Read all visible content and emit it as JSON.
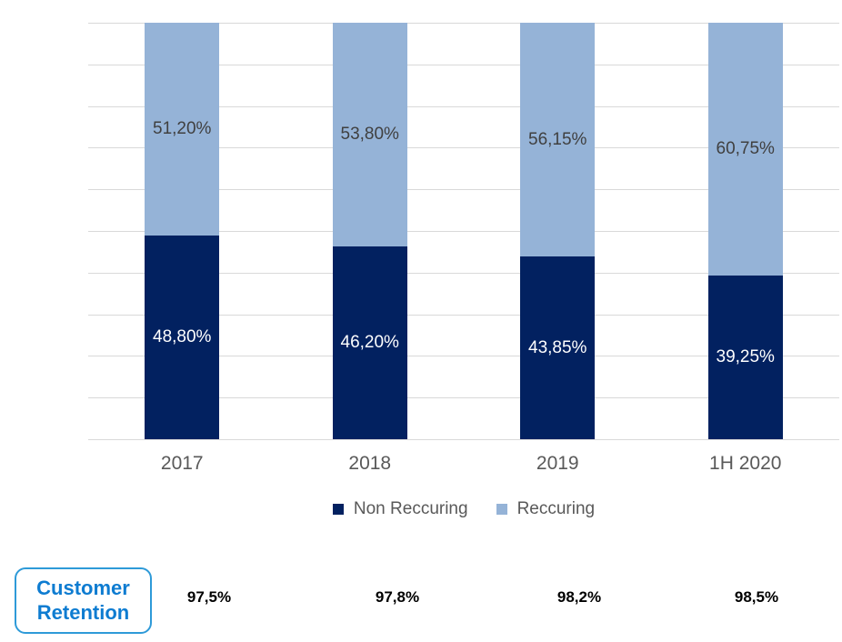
{
  "chart_data": {
    "type": "bar",
    "stacked": true,
    "categories": [
      "2017",
      "2018",
      "2019",
      "1H 2020"
    ],
    "series": [
      {
        "name": "Non Reccuring",
        "color": "#022160",
        "values": [
          48.8,
          46.2,
          43.85,
          39.25
        ],
        "labels": [
          "48,80%",
          "46,20%",
          "43,85%",
          "39,25%"
        ],
        "label_color": "#ffffff"
      },
      {
        "name": "Reccuring",
        "color": "#95b3d7",
        "values": [
          51.2,
          53.8,
          56.15,
          60.75
        ],
        "labels": [
          "51,20%",
          "53,80%",
          "56,15%",
          "60,75%"
        ],
        "label_color": "#404040"
      }
    ],
    "title": "",
    "xlabel": "",
    "ylabel": "",
    "ylim": [
      0,
      100
    ],
    "grid": true,
    "gridline_step_percent": 10,
    "gridline_color": "#d9d9d9",
    "legend_position": "bottom",
    "axis_label_color": "#595959"
  },
  "retention": {
    "box_label_line1": "Customer",
    "box_label_line2": "Retention",
    "values": [
      "97,5%",
      "97,8%",
      "98,2%",
      "98,5%"
    ],
    "text_color": "#0e7cd1",
    "border_color": "#2e9ad8"
  }
}
